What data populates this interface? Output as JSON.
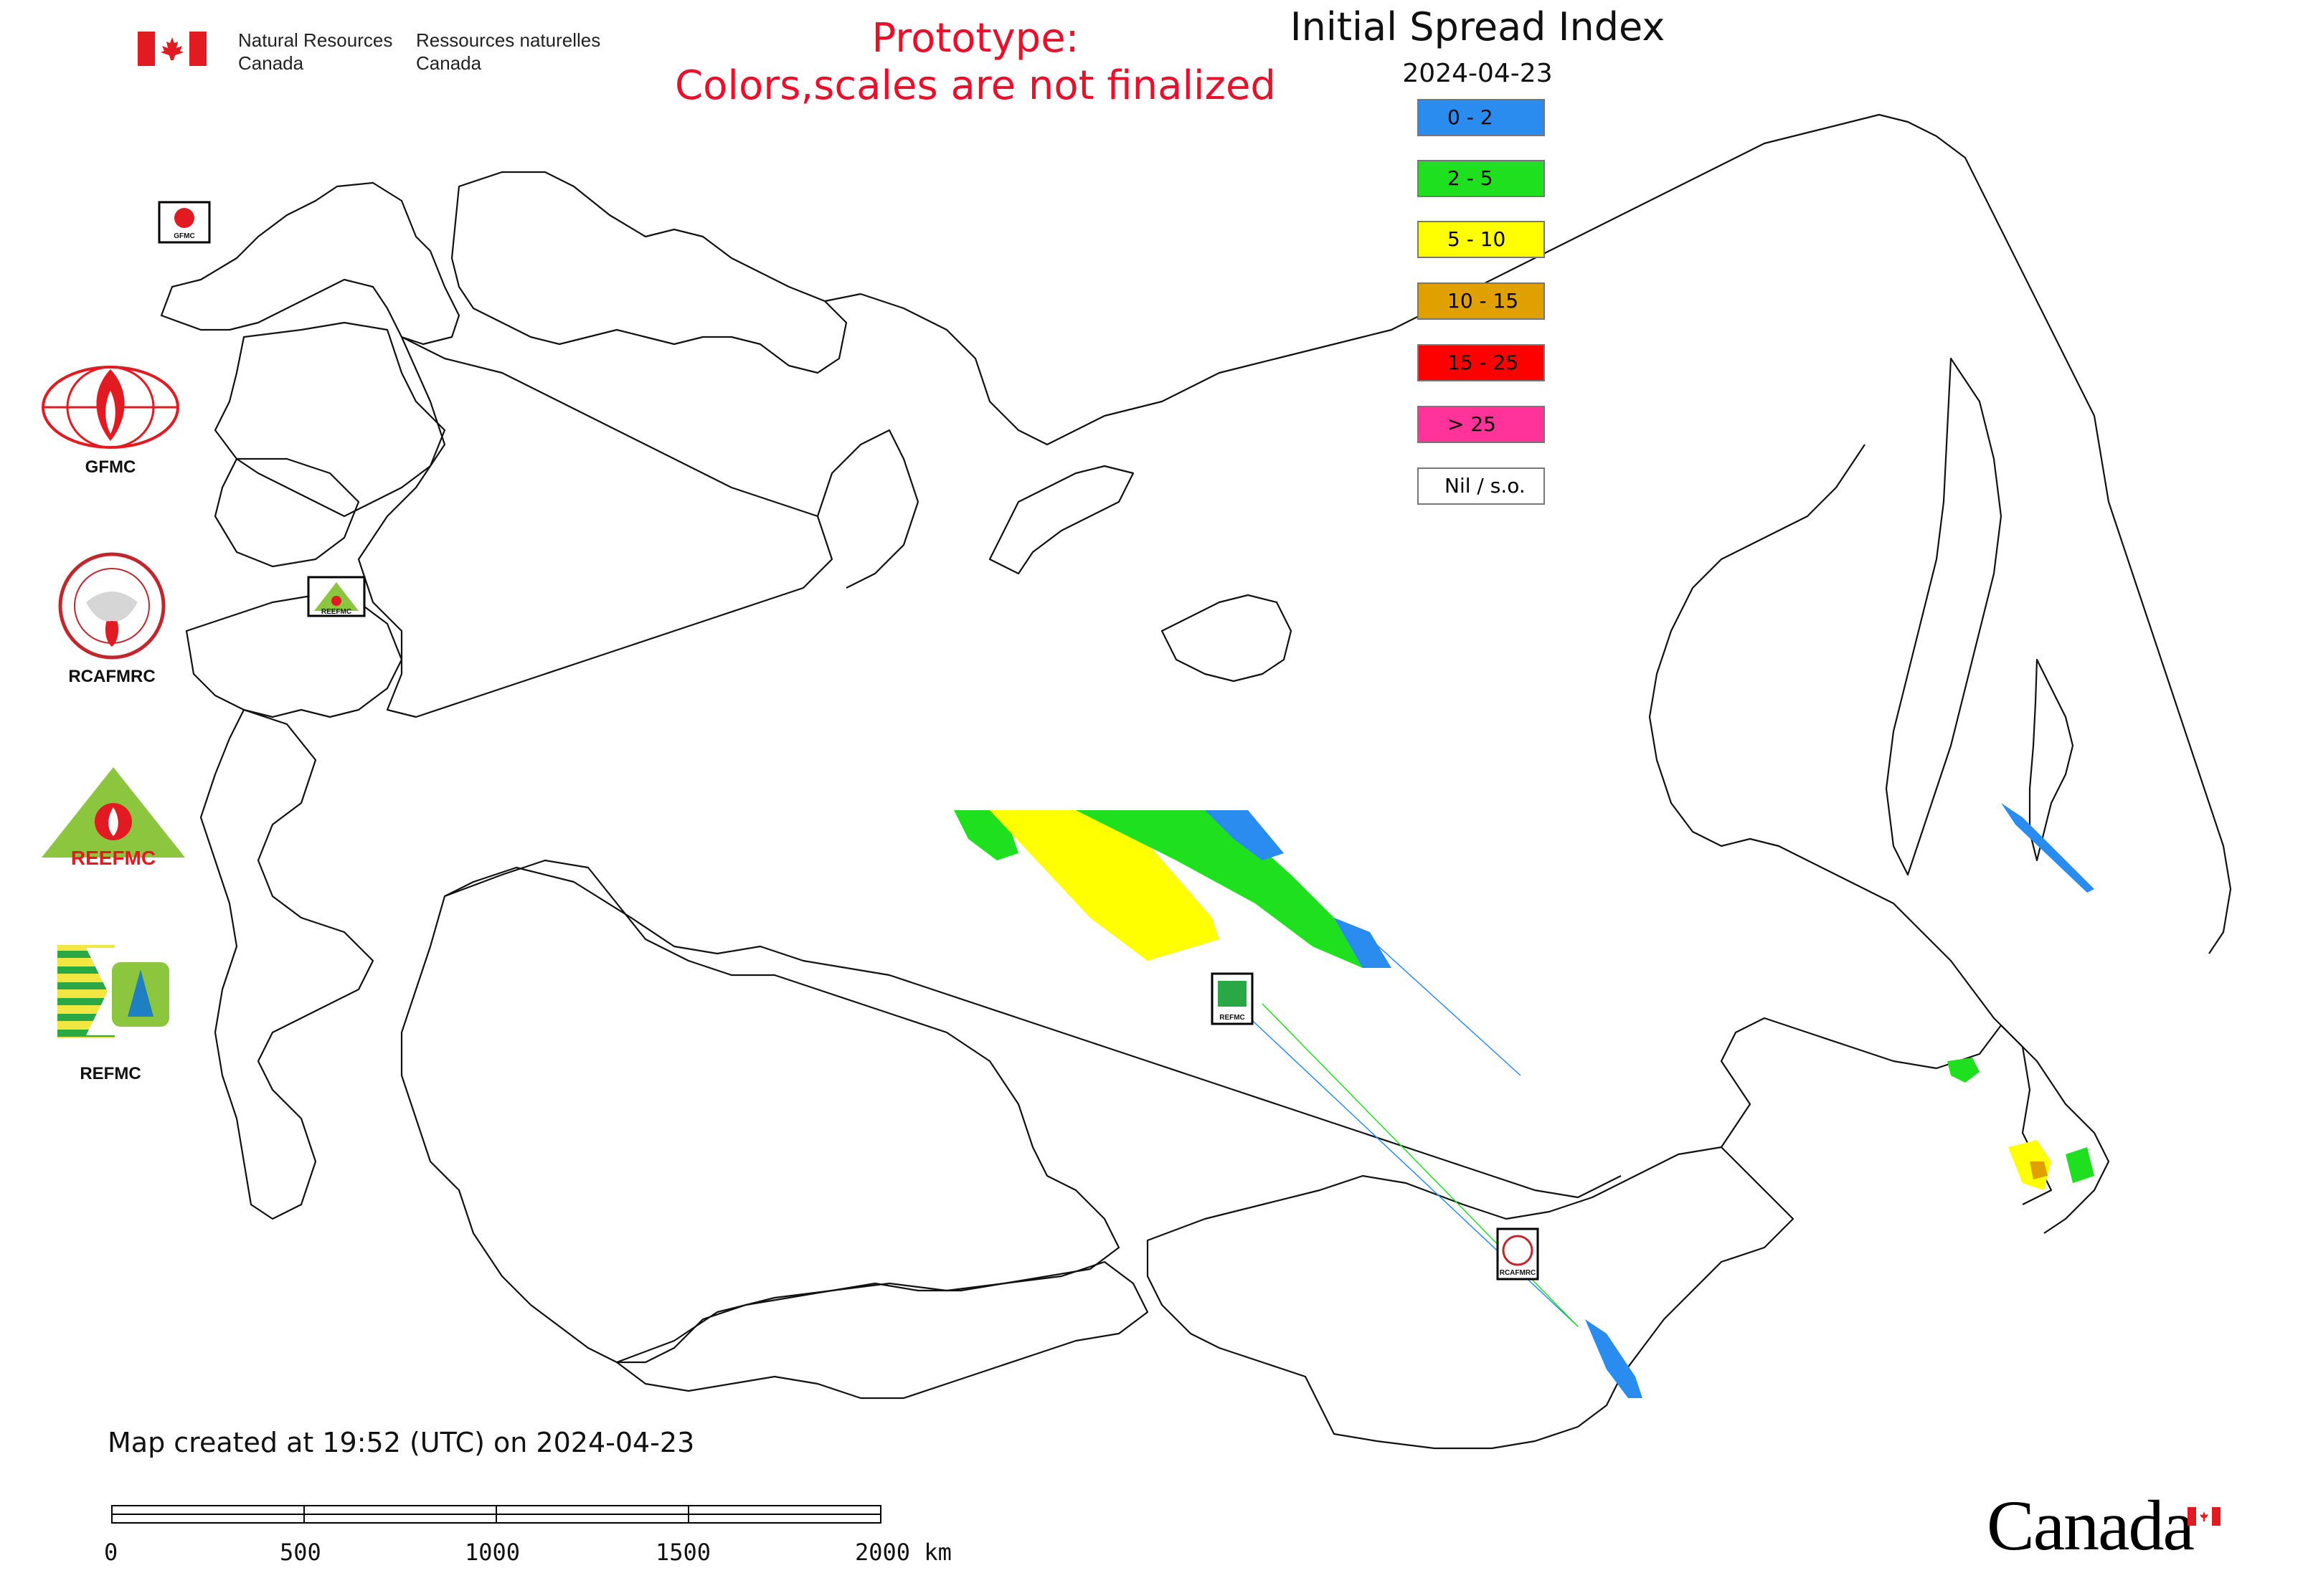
{
  "header": {
    "agency_en_line1": "Natural Resources",
    "agency_en_line2": "Canada",
    "agency_fr_line1": "Ressources naturelles",
    "agency_fr_line2": "Canada"
  },
  "prototype_notice": {
    "line1": "Prototype:",
    "line2": "Colors,scales are not finalized",
    "color": "#e8102a"
  },
  "map_title": "Initial Spread Index",
  "map_date": "2024-04-23",
  "legend": [
    {
      "label": "0 - 2",
      "color": "#2b8cf0"
    },
    {
      "label": "2 - 5",
      "color": "#1ee01e"
    },
    {
      "label": "5 - 10",
      "color": "#ffff00"
    },
    {
      "label": "10 - 15",
      "color": "#e0a000"
    },
    {
      "label": "15 - 25",
      "color": "#ff0000"
    },
    {
      "label": "> 25",
      "color": "#ff3399"
    },
    {
      "label": "Nil / s.o.",
      "color": "#ffffff"
    }
  ],
  "logos": {
    "gfmc_label": "GFMC",
    "rcafmrc_label": "RCAFMRC",
    "reefmc_label": "REEFMC",
    "refmc_label": "REFMC",
    "reefmc_text": "REEFMC"
  },
  "map_markers": {
    "gfmc": "GFMC",
    "reefmc": "REEFMC",
    "refmc": "REFMC",
    "rcafmrc": "RCAFMRC"
  },
  "footer": {
    "created": "Map created at 19:52 (UTC) on 2024-04-23",
    "scale_labels": [
      "0",
      "500",
      "1000",
      "1500",
      "2000 km"
    ],
    "wordmark": "Canada"
  }
}
